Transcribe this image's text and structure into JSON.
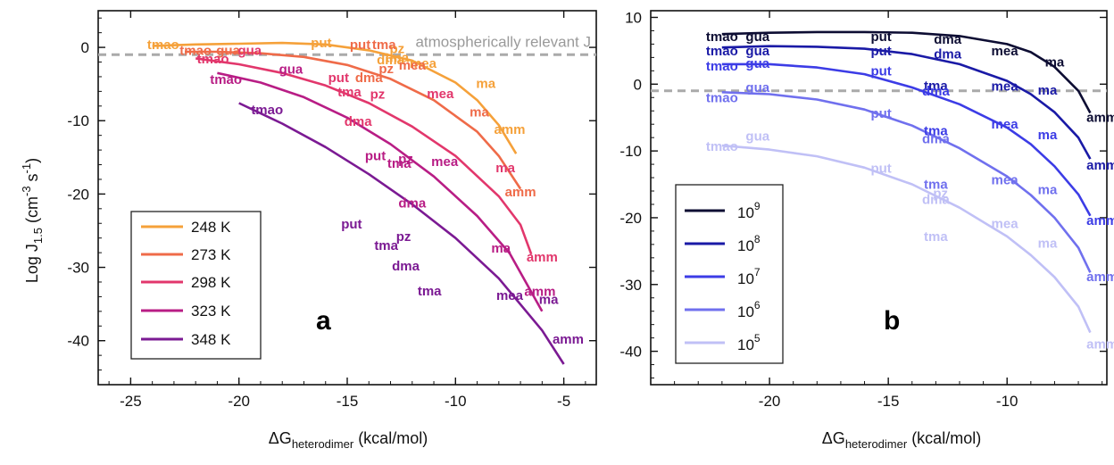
{
  "chart_data": [
    {
      "panel": "a",
      "type": "line",
      "xlabel": "ΔG",
      "xlabel_sub": "heterodimer",
      "xlabel_unit": " (kcal/mol)",
      "ylabel": "Log J",
      "ylabel_sub": "1.5",
      "ylabel_unit_a": " (cm",
      "ylabel_sup1": "-3",
      "ylabel_unit_b": " s",
      "ylabel_sup2": "-1",
      "ylabel_unit_c": ")",
      "xlim": [
        -26.5,
        -3.5
      ],
      "ylim": [
        -46,
        5
      ],
      "xticks": [
        -25,
        -20,
        -15,
        -10,
        -5
      ],
      "yticks": [
        0,
        -10,
        -20,
        -30,
        -40
      ],
      "reference_line": {
        "y": -1,
        "label": "atmospherically relevant J",
        "color": "#aaaaaa"
      },
      "legend": {
        "position": "bottom-left"
      },
      "series": [
        {
          "name": "248 K",
          "color": "#f5a13a",
          "x": [
            -24,
            -22,
            -20,
            -18,
            -16,
            -14,
            -12,
            -10,
            -9,
            -8,
            -7.2
          ],
          "y": [
            0.2,
            0.4,
            0.5,
            0.6,
            0.4,
            -0.4,
            -1.8,
            -4.8,
            -7.2,
            -10.6,
            -14.5
          ]
        },
        {
          "name": "273 K",
          "color": "#ef6b49",
          "x": [
            -22.5,
            -21,
            -19,
            -17,
            -15,
            -13,
            -11,
            -9,
            -8,
            -7
          ],
          "y": [
            -0.6,
            -0.6,
            -0.8,
            -1.3,
            -2.4,
            -4.3,
            -7.2,
            -11.5,
            -14.8,
            -19.3
          ]
        },
        {
          "name": "298 K",
          "color": "#e2376c",
          "x": [
            -22,
            -20,
            -18,
            -16,
            -14,
            -12,
            -10,
            -8,
            -7,
            -6.5
          ],
          "y": [
            -1.5,
            -2.3,
            -3.5,
            -5.2,
            -7.6,
            -10.8,
            -14.8,
            -20.3,
            -24.2,
            -28.2
          ]
        },
        {
          "name": "323 K",
          "color": "#b81d85",
          "x": [
            -21,
            -19,
            -17,
            -15,
            -13,
            -11,
            -9,
            -7.5,
            -6
          ],
          "y": [
            -3.5,
            -4.8,
            -6.8,
            -9.6,
            -13.2,
            -17.6,
            -23,
            -28.1,
            -36
          ]
        },
        {
          "name": "348 K",
          "color": "#7b1a93",
          "x": [
            -20,
            -18,
            -16,
            -14,
            -12,
            -10,
            -8,
            -6,
            -5
          ],
          "y": [
            -7.6,
            -10.4,
            -13.6,
            -17.3,
            -21.4,
            -26.0,
            -31.5,
            -38.6,
            -43.2
          ]
        }
      ],
      "labels": [
        {
          "text": "tmao",
          "x": -23.5,
          "y": 0.4,
          "color": "#f5a13a"
        },
        {
          "text": "put",
          "x": -16.2,
          "y": 0.6,
          "color": "#f5a13a"
        },
        {
          "text": "dma",
          "x": -13.0,
          "y": -1.7,
          "color": "#f5a13a"
        },
        {
          "text": "tma",
          "x": -12.7,
          "y": -1.4,
          "color": "#f5a13a"
        },
        {
          "text": "pz",
          "x": -12.7,
          "y": -0.2,
          "color": "#f5a13a"
        },
        {
          "text": "mea",
          "x": -11.5,
          "y": -2.2,
          "color": "#f5a13a"
        },
        {
          "text": "ma",
          "x": -8.6,
          "y": -4.9,
          "color": "#f5a13a"
        },
        {
          "text": "amm",
          "x": -7.5,
          "y": -11.2,
          "color": "#f5a13a"
        },
        {
          "text": "tmao",
          "x": -22.0,
          "y": -0.4,
          "color": "#ef6b49"
        },
        {
          "text": "gua",
          "x": -20.5,
          "y": -0.4,
          "color": "#ef6b49"
        },
        {
          "text": "put",
          "x": -14.4,
          "y": 0.4,
          "color": "#ef6b49"
        },
        {
          "text": "dma",
          "x": -14.0,
          "y": -4.1,
          "color": "#ef6b49"
        },
        {
          "text": "tma",
          "x": -13.3,
          "y": 0.4,
          "color": "#ef6b49"
        },
        {
          "text": "pz",
          "x": -13.2,
          "y": -2.9,
          "color": "#ef6b49"
        },
        {
          "text": "mea",
          "x": -12.0,
          "y": -2.4,
          "color": "#ef6b49"
        },
        {
          "text": "ma",
          "x": -8.9,
          "y": -8.8,
          "color": "#ef6b49"
        },
        {
          "text": "amm",
          "x": -7.0,
          "y": -19.7,
          "color": "#ef6b49"
        },
        {
          "text": "tmao",
          "x": -21.2,
          "y": -1.6,
          "color": "#e2376c"
        },
        {
          "text": "gua",
          "x": -19.5,
          "y": -0.4,
          "color": "#e2376c"
        },
        {
          "text": "put",
          "x": -15.4,
          "y": -4.1,
          "color": "#e2376c"
        },
        {
          "text": "tma",
          "x": -14.9,
          "y": -6.1,
          "color": "#e2376c"
        },
        {
          "text": "dma",
          "x": -14.5,
          "y": -10.1,
          "color": "#e2376c"
        },
        {
          "text": "pz",
          "x": -13.6,
          "y": -6.4,
          "color": "#e2376c"
        },
        {
          "text": "mea",
          "x": -10.7,
          "y": -6.3,
          "color": "#e2376c"
        },
        {
          "text": "ma",
          "x": -7.7,
          "y": -16.4,
          "color": "#e2376c"
        },
        {
          "text": "amm",
          "x": -6.0,
          "y": -28.6,
          "color": "#e2376c"
        },
        {
          "text": "tmao",
          "x": -20.6,
          "y": -4.4,
          "color": "#b81d85"
        },
        {
          "text": "gua",
          "x": -17.6,
          "y": -3.0,
          "color": "#b81d85"
        },
        {
          "text": "put",
          "x": -13.7,
          "y": -14.8,
          "color": "#b81d85"
        },
        {
          "text": "tma",
          "x": -12.6,
          "y": -15.8,
          "color": "#b81d85"
        },
        {
          "text": "pz",
          "x": -12.3,
          "y": -15.2,
          "color": "#b81d85"
        },
        {
          "text": "dma",
          "x": -12.0,
          "y": -21.2,
          "color": "#b81d85"
        },
        {
          "text": "mea",
          "x": -10.5,
          "y": -15.6,
          "color": "#b81d85"
        },
        {
          "text": "ma",
          "x": -7.9,
          "y": -27.4,
          "color": "#b81d85"
        },
        {
          "text": "amm",
          "x": -6.1,
          "y": -33.3,
          "color": "#b81d85"
        },
        {
          "text": "tmao",
          "x": -18.7,
          "y": -8.5,
          "color": "#7b1a93"
        },
        {
          "text": "put",
          "x": -14.8,
          "y": -24.1,
          "color": "#7b1a93"
        },
        {
          "text": "tma",
          "x": -13.2,
          "y": -27.0,
          "color": "#7b1a93"
        },
        {
          "text": "pz",
          "x": -12.4,
          "y": -25.8,
          "color": "#7b1a93"
        },
        {
          "text": "dma",
          "x": -12.3,
          "y": -29.8,
          "color": "#7b1a93"
        },
        {
          "text": "tma",
          "x": -11.2,
          "y": -33.2,
          "color": "#7b1a93"
        },
        {
          "text": "mea",
          "x": -7.5,
          "y": -33.8,
          "color": "#7b1a93"
        },
        {
          "text": "ma",
          "x": -5.7,
          "y": -34.4,
          "color": "#7b1a93"
        },
        {
          "text": "amm",
          "x": -4.8,
          "y": -39.8,
          "color": "#7b1a93"
        }
      ]
    },
    {
      "panel": "b",
      "type": "line",
      "xlabel": "ΔG",
      "xlabel_sub": "heterodimer",
      "xlabel_unit": " (kcal/mol)",
      "xlim": [
        -25,
        -5.8
      ],
      "ylim": [
        -45,
        11
      ],
      "xticks": [
        -20,
        -15,
        -10,
        -5
      ],
      "yticks": [
        10,
        0,
        -10,
        -20,
        -30,
        -40
      ],
      "reference_line": {
        "y": -1,
        "color": "#aaaaaa"
      },
      "legend": {
        "position": "bottom-left"
      },
      "series": [
        {
          "name": "10",
          "exp": "9",
          "color": "#0d0d33",
          "x": [
            -22,
            -20,
            -18,
            -16,
            -14,
            -12,
            -10,
            -9,
            -8,
            -7,
            -6.5
          ],
          "y": [
            7.5,
            7.7,
            7.8,
            7.8,
            7.7,
            7.2,
            6.0,
            4.8,
            2.6,
            -1.0,
            -4.3
          ]
        },
        {
          "name": "10",
          "exp": "8",
          "color": "#1a1aa6",
          "x": [
            -22,
            -20,
            -18,
            -16,
            -14,
            -12,
            -10,
            -9,
            -8,
            -7,
            -6.5
          ],
          "y": [
            5.5,
            5.7,
            5.6,
            5.3,
            4.5,
            3.0,
            0.5,
            -1.5,
            -4.2,
            -8.0,
            -11.2
          ]
        },
        {
          "name": "10",
          "exp": "7",
          "color": "#3c3ce6",
          "x": [
            -22,
            -20,
            -18,
            -16,
            -14,
            -12,
            -10,
            -9,
            -8,
            -7,
            -6.5
          ],
          "y": [
            3.0,
            3.0,
            2.5,
            1.5,
            -0.5,
            -3.0,
            -6.5,
            -9.0,
            -12.3,
            -16.5,
            -19.7
          ]
        },
        {
          "name": "10",
          "exp": "6",
          "color": "#7070ee",
          "x": [
            -22,
            -20,
            -18,
            -16,
            -14,
            -12,
            -10,
            -9,
            -8,
            -7,
            -6.5
          ],
          "y": [
            -1.2,
            -1.5,
            -2.3,
            -3.8,
            -6.2,
            -9.6,
            -13.8,
            -16.6,
            -20.0,
            -24.5,
            -28.2
          ]
        },
        {
          "name": "10",
          "exp": "5",
          "color": "#c0c0f6",
          "x": [
            -22,
            -20,
            -18,
            -16,
            -14,
            -12,
            -10,
            -9,
            -8,
            -7,
            -6.5
          ],
          "y": [
            -9.2,
            -9.8,
            -10.8,
            -12.5,
            -15.0,
            -18.5,
            -22.8,
            -25.6,
            -28.9,
            -33.3,
            -37.2
          ]
        }
      ],
      "labels": [
        {
          "text": "tmao",
          "x": -22.0,
          "y": 7.1,
          "color": "#0d0d33"
        },
        {
          "text": "gua",
          "x": -20.5,
          "y": 7.1,
          "color": "#0d0d33"
        },
        {
          "text": "put",
          "x": -15.3,
          "y": 7.1,
          "color": "#0d0d33"
        },
        {
          "text": "dma",
          "x": -12.5,
          "y": 6.7,
          "color": "#0d0d33"
        },
        {
          "text": "mea",
          "x": -10.1,
          "y": 5.0,
          "color": "#0d0d33"
        },
        {
          "text": "ma",
          "x": -8.0,
          "y": 3.3,
          "color": "#0d0d33"
        },
        {
          "text": "amm",
          "x": -6.0,
          "y": -5.0,
          "color": "#0d0d33"
        },
        {
          "text": "tmao",
          "x": -22.0,
          "y": 5.0,
          "color": "#1a1aa6"
        },
        {
          "text": "gua",
          "x": -20.5,
          "y": 5.0,
          "color": "#1a1aa6"
        },
        {
          "text": "put",
          "x": -15.3,
          "y": 5.0,
          "color": "#1a1aa6"
        },
        {
          "text": "dma",
          "x": -12.5,
          "y": 4.5,
          "color": "#1a1aa6"
        },
        {
          "text": "tma",
          "x": -13.0,
          "y": -0.2,
          "color": "#1a1aa6"
        },
        {
          "text": "mea",
          "x": -10.1,
          "y": -0.3,
          "color": "#1a1aa6"
        },
        {
          "text": "ma",
          "x": -8.3,
          "y": -0.9,
          "color": "#1a1aa6"
        },
        {
          "text": "amm",
          "x": -6.0,
          "y": -12.1,
          "color": "#1a1aa6"
        },
        {
          "text": "tmao",
          "x": -22.0,
          "y": 2.7,
          "color": "#3c3ce6"
        },
        {
          "text": "gua",
          "x": -20.5,
          "y": 3.1,
          "color": "#3c3ce6"
        },
        {
          "text": "put",
          "x": -15.3,
          "y": 2.0,
          "color": "#3c3ce6"
        },
        {
          "text": "dma",
          "x": -13.0,
          "y": -1.0,
          "color": "#3c3ce6"
        },
        {
          "text": "tma",
          "x": -13.0,
          "y": -7.0,
          "color": "#3c3ce6"
        },
        {
          "text": "mea",
          "x": -10.1,
          "y": -6.0,
          "color": "#3c3ce6"
        },
        {
          "text": "ma",
          "x": -8.3,
          "y": -7.6,
          "color": "#3c3ce6"
        },
        {
          "text": "amm",
          "x": -6.0,
          "y": -20.4,
          "color": "#3c3ce6"
        },
        {
          "text": "tmao",
          "x": -22.0,
          "y": -2.0,
          "color": "#7070ee"
        },
        {
          "text": "gua",
          "x": -20.5,
          "y": -0.5,
          "color": "#7070ee"
        },
        {
          "text": "put",
          "x": -15.3,
          "y": -4.4,
          "color": "#7070ee"
        },
        {
          "text": "dma",
          "x": -13.0,
          "y": -8.2,
          "color": "#7070ee"
        },
        {
          "text": "tma",
          "x": -13.0,
          "y": -15.0,
          "color": "#7070ee"
        },
        {
          "text": "mea",
          "x": -10.1,
          "y": -14.3,
          "color": "#7070ee"
        },
        {
          "text": "ma",
          "x": -8.3,
          "y": -15.8,
          "color": "#7070ee"
        },
        {
          "text": "amm",
          "x": -6.0,
          "y": -28.8,
          "color": "#7070ee"
        },
        {
          "text": "tmao",
          "x": -22.0,
          "y": -9.3,
          "color": "#c0c0f6"
        },
        {
          "text": "gua",
          "x": -20.5,
          "y": -7.8,
          "color": "#c0c0f6"
        },
        {
          "text": "put",
          "x": -15.3,
          "y": -12.6,
          "color": "#c0c0f6"
        },
        {
          "text": "pz",
          "x": -12.8,
          "y": -16.3,
          "color": "#c0c0f6"
        },
        {
          "text": "dma",
          "x": -13.0,
          "y": -17.3,
          "color": "#c0c0f6"
        },
        {
          "text": "tma",
          "x": -13.0,
          "y": -22.8,
          "color": "#c0c0f6"
        },
        {
          "text": "mea",
          "x": -10.1,
          "y": -20.9,
          "color": "#c0c0f6"
        },
        {
          "text": "ma",
          "x": -8.3,
          "y": -23.8,
          "color": "#c0c0f6"
        },
        {
          "text": "amm",
          "x": -6.0,
          "y": -38.9,
          "color": "#c0c0f6"
        }
      ]
    }
  ],
  "panel_labels": {
    "a": "a",
    "b": "b"
  }
}
